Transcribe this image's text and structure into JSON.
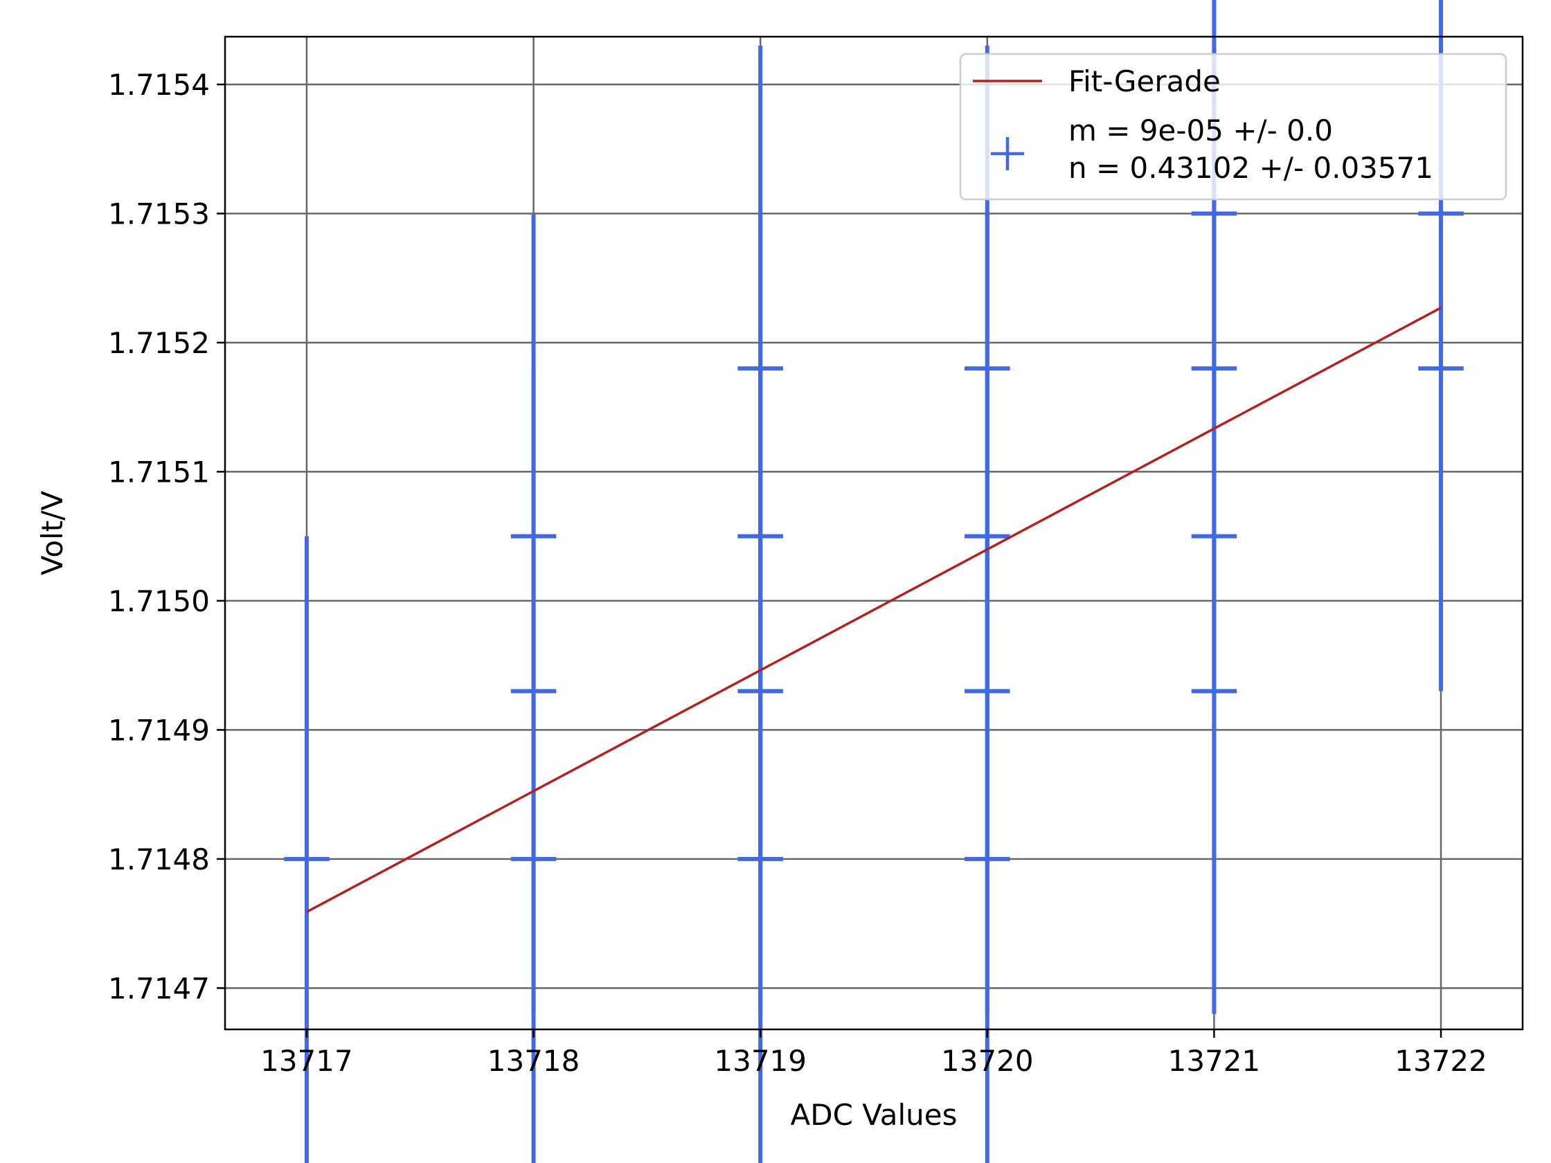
{
  "chart_data": {
    "type": "scatter",
    "title": "",
    "xlabel": "ADC Values",
    "ylabel": "Volt/V",
    "xlim": [
      13716.64,
      13722.36
    ],
    "ylim": [
      1.714668,
      1.715437
    ],
    "xticks": [
      "13717",
      "13718",
      "13719",
      "13720",
      "13721",
      "13722"
    ],
    "yticks": [
      "1.7147",
      "1.7148",
      "1.7149",
      "1.7150",
      "1.7151",
      "1.7152",
      "1.7153",
      "1.7154"
    ],
    "grid": true,
    "legend_position": "top-right",
    "colors": {
      "data": "#4169e1",
      "fit": "#b22222",
      "grid": "#666666"
    },
    "yerr": 0.00025,
    "xerr": 0.1,
    "series": [
      {
        "name": "",
        "kind": "errorbar",
        "legend_lines": [
          "m = 9e-05 +/- 0.0",
          "n = 0.43102 +/- 0.03571"
        ],
        "x": [
          13717,
          13718,
          13718,
          13718,
          13719,
          13719,
          13719,
          13719,
          13720,
          13720,
          13720,
          13720,
          13721,
          13721,
          13721,
          13721,
          13722,
          13722
        ],
        "y": [
          1.7148,
          1.7148,
          1.71493,
          1.71505,
          1.7148,
          1.71493,
          1.71505,
          1.71518,
          1.7148,
          1.71493,
          1.71505,
          1.71518,
          1.71493,
          1.71505,
          1.71518,
          1.7153,
          1.71518,
          1.7153
        ]
      },
      {
        "name": "Fit-Gerade",
        "kind": "line",
        "x": [
          13717,
          13722
        ],
        "y": [
          1.714759,
          1.715227
        ]
      }
    ]
  }
}
